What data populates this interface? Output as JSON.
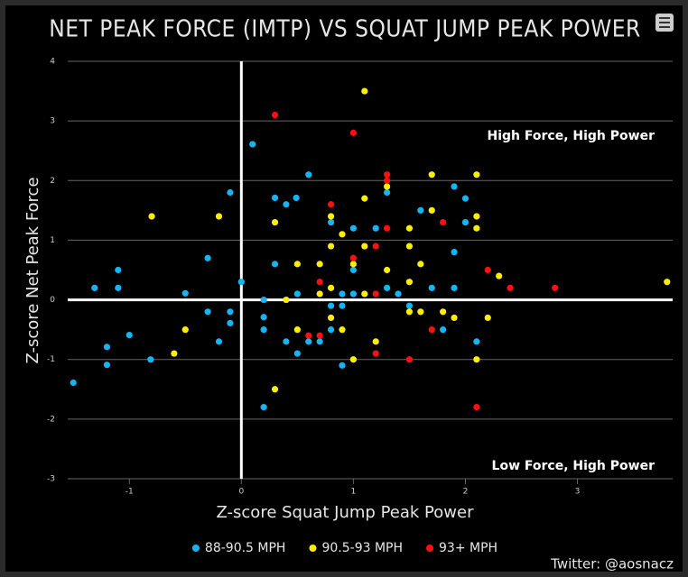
{
  "chart_data": {
    "type": "scatter",
    "title": "NET PEAK FORCE (IMTP) VS SQUAT JUMP PEAK POWER",
    "x_label": "Z-score Squat Jump Peak Power",
    "y_label": "Z-score Net Peak Force",
    "annotations": [
      "High Force, High Power",
      "Low Force, High Power"
    ],
    "credit": "Twitter: @aosnacz",
    "xlim": [
      -1.55,
      3.85
    ],
    "xticks": [
      -1,
      0,
      1,
      2,
      3
    ],
    "ylim": [
      -3,
      4
    ],
    "yticks": [
      -3,
      -2,
      -1,
      0,
      1,
      2,
      3,
      4
    ],
    "grid": true,
    "series": [
      {
        "name": "88-90.5 MPH",
        "color": "#16b4f2",
        "x": [
          -1.5,
          -1.31,
          -1.1,
          -1.1,
          -1.2,
          -1.2,
          -1.0,
          -0.81,
          -0.5,
          -0.3,
          -0.3,
          -0.2,
          -0.1,
          -0.1,
          -0.1,
          0,
          0.1,
          0.2,
          0.2,
          0.2,
          0.2,
          0.3,
          0.3,
          0.4,
          0.4,
          0.49,
          0.5,
          0.5,
          0.6,
          0.6,
          0.7,
          0.8,
          0.8,
          0.8,
          0.9,
          0.9,
          0.9,
          1.0,
          1.0,
          1.0,
          1.2,
          1.3,
          1.3,
          1.4,
          1.5,
          1.6,
          1.7,
          1.8,
          1.9,
          1.9,
          1.9,
          2.0,
          2.0,
          2.1
        ],
        "values": [
          -1.39,
          0.2,
          0.5,
          0.2,
          -0.79,
          -1.09,
          -0.59,
          -1.0,
          0.11,
          0.7,
          -0.2,
          -0.7,
          1.8,
          -0.2,
          -0.39,
          0.3,
          2.61,
          0.0,
          -0.29,
          -0.5,
          -1.8,
          1.71,
          0.6,
          1.6,
          -0.7,
          1.71,
          0.1,
          -0.9,
          2.1,
          -0.7,
          -0.7,
          1.3,
          -0.1,
          -0.5,
          0.1,
          -0.1,
          -1.1,
          1.2,
          0.5,
          0.1,
          1.2,
          1.8,
          0.2,
          0.1,
          -0.1,
          1.5,
          0.2,
          -0.5,
          1.9,
          0.8,
          0.2,
          1.7,
          1.3,
          -0.7
        ]
      },
      {
        "name": "90.5-93 MPH",
        "color": "#ffee00",
        "x": [
          -0.8,
          -0.6,
          -0.5,
          -0.2,
          0.3,
          0.3,
          0.4,
          0.5,
          0.5,
          0.7,
          0.7,
          0.8,
          0.8,
          0.8,
          0.8,
          0.9,
          0.9,
          1.0,
          1.0,
          1.1,
          1.1,
          1.1,
          1.1,
          1.2,
          1.3,
          1.3,
          1.5,
          1.5,
          1.5,
          1.5,
          1.6,
          1.6,
          1.7,
          1.7,
          1.8,
          1.9,
          2.1,
          2.1,
          2.1,
          2.1,
          2.2,
          2.3,
          3.8
        ],
        "values": [
          1.4,
          -0.9,
          -0.5,
          1.4,
          1.3,
          -1.5,
          0.0,
          0.6,
          -0.5,
          0.6,
          0.1,
          1.4,
          0.9,
          0.2,
          -0.3,
          1.1,
          -0.5,
          0.6,
          -1.0,
          3.5,
          1.7,
          0.9,
          0.1,
          -0.7,
          1.9,
          0.5,
          1.2,
          0.9,
          0.3,
          -0.2,
          0.6,
          -0.2,
          2.1,
          1.5,
          -0.2,
          -0.3,
          2.1,
          1.4,
          1.2,
          -1.0,
          -0.3,
          0.4,
          0.3
        ]
      },
      {
        "name": "93+ MPH",
        "color": "#ff1010",
        "x": [
          0.3,
          0.6,
          0.7,
          0.7,
          0.8,
          1.0,
          1.0,
          1.2,
          1.2,
          1.2,
          1.3,
          1.3,
          1.3,
          1.5,
          1.7,
          1.8,
          2.2,
          2.4,
          2.8,
          2.1
        ],
        "values": [
          3.1,
          -0.6,
          0.3,
          -0.6,
          1.6,
          2.8,
          0.7,
          0.9,
          0.1,
          -0.9,
          2.1,
          2.0,
          1.2,
          -1.0,
          -0.5,
          1.3,
          0.5,
          0.2,
          0.2,
          -1.8
        ]
      }
    ]
  }
}
